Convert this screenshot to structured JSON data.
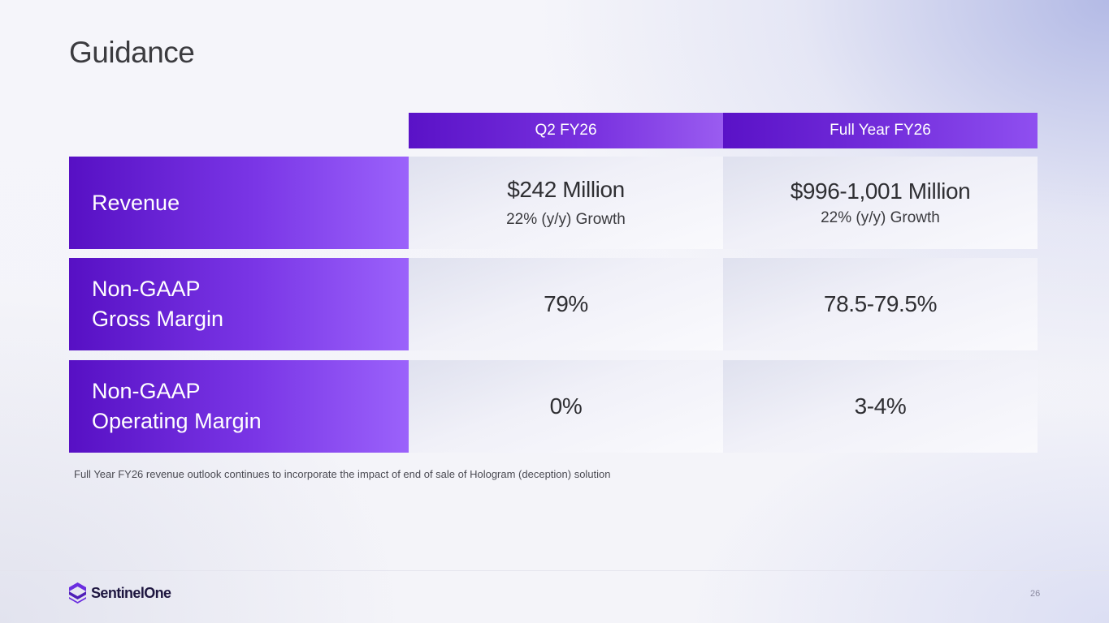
{
  "slide": {
    "title": "Guidance",
    "page_number": "26"
  },
  "columns": {
    "q2": "Q2 FY26",
    "full_year": "Full Year FY26"
  },
  "rows": [
    {
      "label_line1": "Revenue",
      "label_line2": "",
      "q2_value": "$242 Million",
      "q2_sub": "22% (y/y) Growth",
      "fy_value": "$996-1,001 Million",
      "fy_sub": "22% (y/y) Growth"
    },
    {
      "label_line1": "Non-GAAP",
      "label_line2": "Gross Margin",
      "q2_value": "79%",
      "fy_value": "78.5-79.5%"
    },
    {
      "label_line1": "Non-GAAP",
      "label_line2": "Operating Margin",
      "q2_value": "0%",
      "fy_value": "3-4%"
    }
  ],
  "footnote": "Full Year FY26 revenue outlook continues to incorporate the impact of end of sale of Hologram (deception) solution",
  "brand": {
    "name": "SentinelOne",
    "logo_icon": "sentinelone-logo-icon",
    "accent_color": "#6b2ee0",
    "accent_dark": "#5710c4"
  }
}
